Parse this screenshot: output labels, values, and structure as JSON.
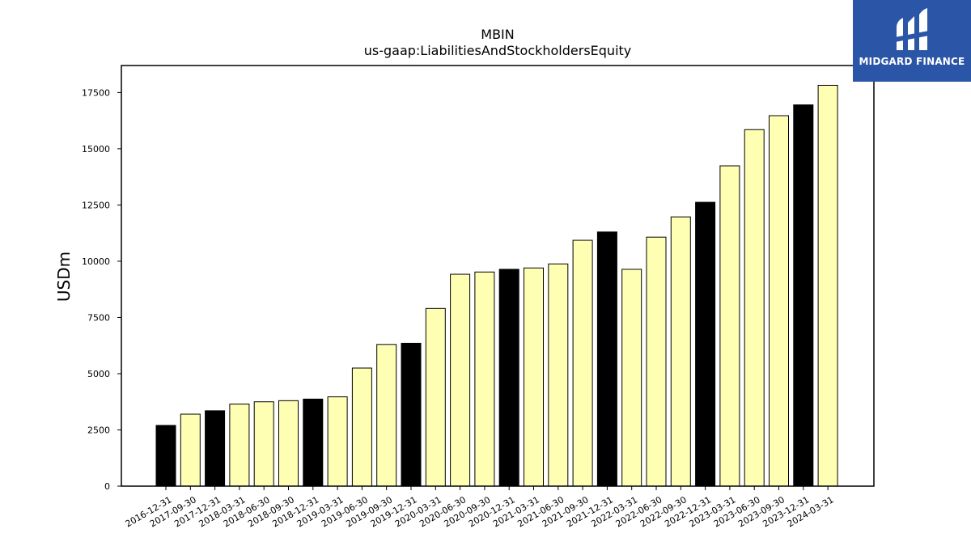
{
  "chart_data": {
    "type": "bar",
    "title": "MBIN",
    "subtitle": "us-gaap:LiabilitiesAndStockholdersEquity",
    "xlabel": "",
    "ylabel": "USDm",
    "ylim": [
      0,
      18700
    ],
    "yticks": [
      0,
      2500,
      5000,
      7500,
      10000,
      12500,
      15000,
      17500
    ],
    "grid": false,
    "colors": {
      "annual": "#000000",
      "quarterly": "#ffffb3",
      "edge": "#000000"
    },
    "categories": [
      "2016-12-31",
      "2017-09-30",
      "2017-12-31",
      "2018-03-31",
      "2018-06-30",
      "2018-09-30",
      "2018-12-31",
      "2019-03-31",
      "2019-06-30",
      "2019-09-30",
      "2019-12-31",
      "2020-03-31",
      "2020-06-30",
      "2020-09-30",
      "2020-12-31",
      "2021-03-31",
      "2021-06-30",
      "2021-09-30",
      "2021-12-31",
      "2022-03-31",
      "2022-06-30",
      "2022-09-30",
      "2022-12-31",
      "2023-03-31",
      "2023-06-30",
      "2023-09-30",
      "2023-12-31",
      "2024-03-31"
    ],
    "values": [
      2700,
      3200,
      3350,
      3650,
      3750,
      3800,
      3870,
      3970,
      5250,
      6300,
      6350,
      7900,
      9420,
      9520,
      9640,
      9700,
      9880,
      10930,
      11300,
      9640,
      11070,
      11970,
      12620,
      14240,
      15850,
      16470,
      16950,
      17820
    ],
    "annual": [
      true,
      false,
      true,
      false,
      false,
      false,
      true,
      false,
      false,
      false,
      true,
      false,
      false,
      false,
      true,
      false,
      false,
      false,
      true,
      false,
      false,
      false,
      true,
      false,
      false,
      false,
      true,
      false
    ]
  },
  "logo": {
    "text": "MIDGARD FINANCE",
    "background": "#2b56a8"
  }
}
